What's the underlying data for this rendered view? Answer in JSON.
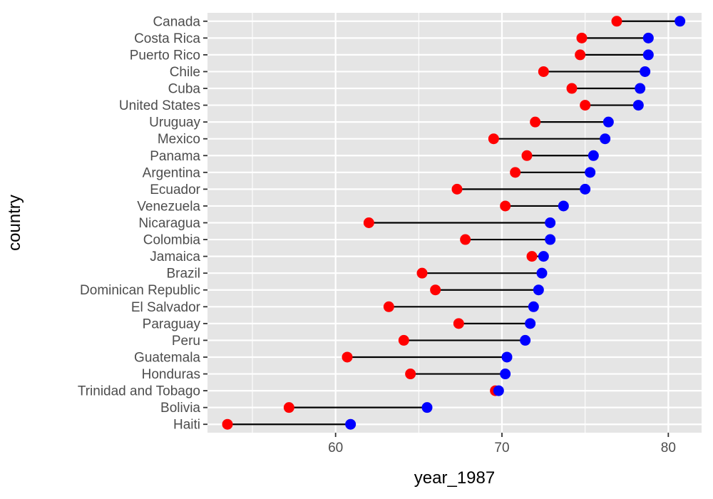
{
  "chart_data": {
    "type": "dumbbell",
    "xlabel": "year_1987",
    "ylabel": "country",
    "xlim": [
      52.3,
      82.0
    ],
    "x_ticks": [
      60,
      70,
      80
    ],
    "x_minor_ticks": [
      55,
      65,
      75
    ],
    "grid": true,
    "colors": {
      "start": "#ff0000",
      "end": "#0000ff",
      "segment": "#000000",
      "panel": "#e5e5e5",
      "grid": "#ffffff"
    },
    "rows": [
      {
        "country": "Canada",
        "start": 76.9,
        "end": 80.7
      },
      {
        "country": "Costa Rica",
        "start": 74.8,
        "end": 78.8
      },
      {
        "country": "Puerto Rico",
        "start": 74.7,
        "end": 78.8
      },
      {
        "country": "Chile",
        "start": 72.5,
        "end": 78.6
      },
      {
        "country": "Cuba",
        "start": 74.2,
        "end": 78.3
      },
      {
        "country": "United States",
        "start": 75.0,
        "end": 78.2
      },
      {
        "country": "Uruguay",
        "start": 72.0,
        "end": 76.4
      },
      {
        "country": "Mexico",
        "start": 69.5,
        "end": 76.2
      },
      {
        "country": "Panama",
        "start": 71.5,
        "end": 75.5
      },
      {
        "country": "Argentina",
        "start": 70.8,
        "end": 75.3
      },
      {
        "country": "Ecuador",
        "start": 67.3,
        "end": 75.0
      },
      {
        "country": "Venezuela",
        "start": 70.2,
        "end": 73.7
      },
      {
        "country": "Nicaragua",
        "start": 62.0,
        "end": 72.9
      },
      {
        "country": "Colombia",
        "start": 67.8,
        "end": 72.9
      },
      {
        "country": "Jamaica",
        "start": 71.8,
        "end": 72.5
      },
      {
        "country": "Brazil",
        "start": 65.2,
        "end": 72.4
      },
      {
        "country": "Dominican Republic",
        "start": 66.0,
        "end": 72.2
      },
      {
        "country": "El Salvador",
        "start": 63.2,
        "end": 71.9
      },
      {
        "country": "Paraguay",
        "start": 67.4,
        "end": 71.7
      },
      {
        "country": "Peru",
        "start": 64.1,
        "end": 71.4
      },
      {
        "country": "Guatemala",
        "start": 60.7,
        "end": 70.3
      },
      {
        "country": "Honduras",
        "start": 64.5,
        "end": 70.2
      },
      {
        "country": "Trinidad and Tobago",
        "start": 69.6,
        "end": 69.8
      },
      {
        "country": "Bolivia",
        "start": 57.2,
        "end": 65.5
      },
      {
        "country": "Haiti",
        "start": 53.5,
        "end": 60.9
      }
    ]
  }
}
